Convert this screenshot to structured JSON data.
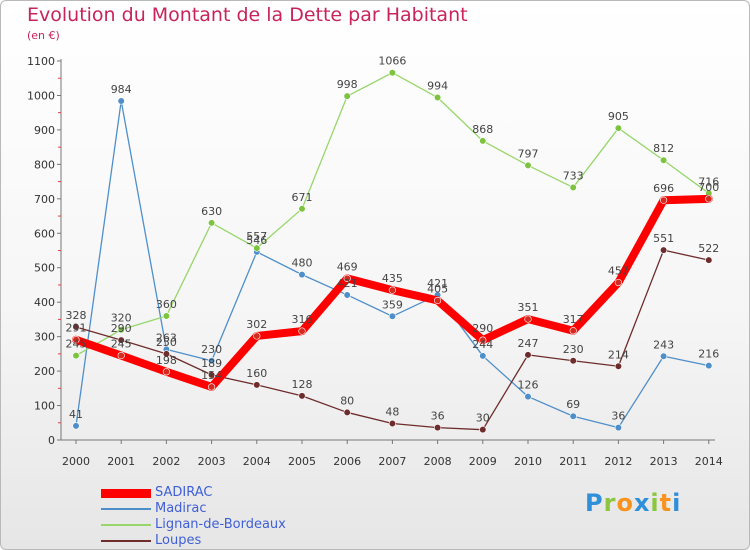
{
  "brand": {
    "letters": [
      {
        "ch": "P",
        "color": "#2f8fd8"
      },
      {
        "ch": "r",
        "color": "#8cc63f"
      },
      {
        "ch": "o",
        "color": "#f7931e"
      },
      {
        "ch": "x",
        "color": "#2f8fd8"
      },
      {
        "ch": "i",
        "color": "#8cc63f"
      },
      {
        "ch": "t",
        "color": "#f7931e"
      },
      {
        "ch": "i",
        "color": "#2f8fd8"
      }
    ]
  },
  "chart_data": {
    "type": "line",
    "title": "Evolution du Montant de la Dette par Habitant",
    "subtitle": "(en €)",
    "x": [
      "2000",
      "2001",
      "2002",
      "2003",
      "2004",
      "2005",
      "2006",
      "2007",
      "2008",
      "2009",
      "2010",
      "2011",
      "2012",
      "2013",
      "2014"
    ],
    "yticks": [
      0,
      100,
      200,
      300,
      400,
      500,
      600,
      700,
      800,
      900,
      1000,
      1100
    ],
    "ylim": [
      0,
      1100
    ],
    "grid": false,
    "legend_position": "bottom-left",
    "series": [
      {
        "name": "SADIRAC",
        "color": "#ff0000",
        "marker": "#d42a1f",
        "width": 8,
        "values": [
          291,
          245,
          198,
          154,
          302,
          316,
          469,
          435,
          405,
          290,
          351,
          317,
          457,
          696,
          700
        ]
      },
      {
        "name": "Madirac",
        "color": "#4f8fc9",
        "marker": "#4f8fc9",
        "width": 1.3,
        "values": [
          41,
          984,
          263,
          230,
          546,
          480,
          421,
          359,
          421,
          244,
          126,
          69,
          36,
          243,
          216
        ]
      },
      {
        "name": "Lignan-de-Bordeaux",
        "color": "#97d66a",
        "marker": "#7cc43f",
        "width": 1.3,
        "values": [
          245,
          320,
          360,
          630,
          557,
          671,
          998,
          1066,
          994,
          868,
          797,
          733,
          905,
          812,
          716
        ]
      },
      {
        "name": "Loupes",
        "color": "#6e2c2c",
        "marker": "#6e2c2c",
        "width": 1.3,
        "values": [
          328,
          290,
          250,
          189,
          160,
          128,
          80,
          48,
          36,
          30,
          247,
          230,
          214,
          551,
          522
        ]
      }
    ]
  }
}
